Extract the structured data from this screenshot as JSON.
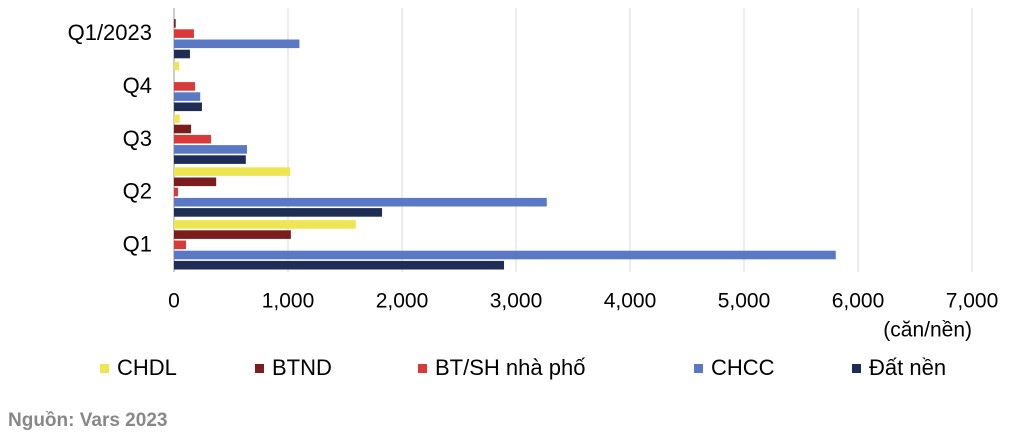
{
  "chart_data": {
    "type": "hbar",
    "categories": [
      "Q1/2023",
      "Q4",
      "Q3",
      "Q2",
      "Q1"
    ],
    "series": [
      {
        "name": "CHDL",
        "color": "#ede552",
        "values": [
          0,
          45,
          50,
          1020,
          1595
        ]
      },
      {
        "name": "BTND",
        "color": "#7b1d1d",
        "values": [
          15,
          0,
          150,
          370,
          1025
        ]
      },
      {
        "name": "BT/SH nhà phố",
        "color": "#d83a3a",
        "values": [
          175,
          185,
          325,
          35,
          105
        ]
      },
      {
        "name": "CHCC",
        "color": "#5a78c4",
        "values": [
          1100,
          230,
          640,
          3270,
          5805
        ]
      },
      {
        "name": "Đất nền",
        "color": "#1f2d55",
        "values": [
          140,
          245,
          630,
          1825,
          2895
        ]
      }
    ],
    "xlim": [
      0,
      7000
    ],
    "xticks": [
      0,
      {
        "value": 1000,
        "label": "1,000"
      },
      {
        "value": 2000,
        "label": "2,000"
      },
      {
        "value": 3000,
        "label": "3,000"
      },
      {
        "value": 4000,
        "label": "4,000"
      },
      {
        "value": 5000,
        "label": "5,000"
      },
      {
        "value": 6000,
        "label": "6,000"
      },
      {
        "value": 7000,
        "label": "7,000"
      }
    ],
    "x_label": "(căn/nền)",
    "grid": true,
    "source": "Nguồn: Vars 2023"
  }
}
